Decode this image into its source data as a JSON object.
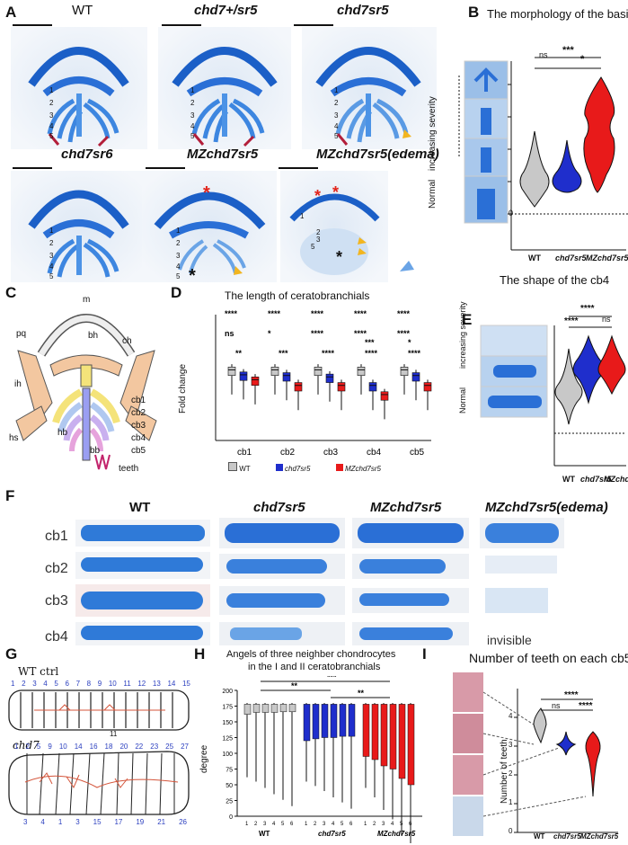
{
  "panels": {
    "A": "A",
    "B": "B",
    "C": "C",
    "D": "D",
    "E": "E",
    "F": "F",
    "G": "G",
    "H": "H",
    "I": "I"
  },
  "panelA": {
    "titles": [
      "WT",
      "chd7+/sr5",
      "chd7sr5",
      "chd7sr6",
      "MZchd7sr5",
      "MZchd7sr5(edema)"
    ],
    "arch_numbers": [
      "1",
      "2",
      "3",
      "4",
      "5"
    ],
    "symbol_asterisk": "*"
  },
  "panelB": {
    "title": "The morphology of the basihyal",
    "yaxis_top": "increasing severity",
    "yaxis_bottom": "Normal",
    "x_labels": [
      "WT",
      "chd7sr5",
      "MZchd7sr5"
    ],
    "sig": [
      "***",
      "ns",
      "*"
    ],
    "zero": "0"
  },
  "panelC": {
    "labels": [
      "m",
      "pq",
      "bh",
      "ch",
      "ih",
      "hs",
      "hb",
      "bb",
      "cb1",
      "cb2",
      "cb3",
      "cb4",
      "cb5",
      "teeth"
    ]
  },
  "panelD": {
    "title": "The length of ceratobranchials",
    "ylabel": "Fold change",
    "legend": [
      "WT",
      "chd7sr5",
      "MZchd7sr5"
    ],
    "sig_top": [
      "****",
      "****",
      "****",
      "****",
      "****"
    ],
    "sig_mid": [
      "ns",
      "*",
      "****",
      "****",
      "****"
    ],
    "sig_bot": [
      "**",
      "***",
      "****",
      "****",
      "****"
    ],
    "sig_mid2": [
      "",
      "",
      "",
      "***",
      "*"
    ]
  },
  "panelE": {
    "title": "The shape of the cb4",
    "yaxis_top": "increasing severity",
    "yaxis_bottom": "Normal",
    "x_labels": [
      "WT",
      "chd7sr5",
      "MZchd7sr5"
    ],
    "sig": [
      "****",
      "****",
      "ns"
    ]
  },
  "panelF": {
    "titles": [
      "WT",
      "chd7sr5",
      "MZchd7sr5",
      "MZchd7sr5(edema)"
    ],
    "rows": [
      "cb1",
      "cb2",
      "cb3",
      "cb4"
    ],
    "invisible": "invisible"
  },
  "panelG": {
    "wt_label": "WT ctrl",
    "mut_label": "chd7",
    "wt_top_numbers": [
      "1",
      "2",
      "3",
      "4",
      "5",
      "6",
      "7",
      "8",
      "9",
      "10",
      "11",
      "12",
      "13",
      "14",
      "15"
    ],
    "wt_bottom_number": "11",
    "mut_top_numbers": [
      "1",
      "2",
      "5",
      "9",
      "10",
      "14",
      "16",
      "18",
      "20",
      "22",
      "23",
      "25",
      "27"
    ],
    "mut_bottom_numbers": [
      "3",
      "4",
      "1",
      "3",
      "15",
      "17",
      "19",
      "21",
      "26"
    ]
  },
  "panelH": {
    "title_line1": "Angels of three neighber chondrocytes",
    "title_line2": "in the I and II ceratobranchials",
    "ylabel": "degree",
    "yticks": [
      "0",
      "25",
      "50",
      "75",
      "100",
      "125",
      "150",
      "175",
      "200"
    ],
    "groups": [
      "WT",
      "chd7sr5",
      "MZchd7sr5"
    ],
    "sig": [
      "***",
      "**",
      "**"
    ],
    "tick_numbers": [
      "1",
      "2",
      "3",
      "4",
      "5",
      "6"
    ]
  },
  "panelI": {
    "title": "Number of teeth on each cb5",
    "ylabel": "Number of teeth",
    "yticks": [
      "0",
      "1",
      "2",
      "3",
      "4"
    ],
    "x_labels": [
      "WT",
      "chd7sr5",
      "MZchd7sr5"
    ],
    "sig": [
      "****",
      "ns",
      "****"
    ]
  },
  "chart_data": [
    {
      "type": "bar",
      "title": "The length of ceratobranchials",
      "ylabel": "Fold change",
      "categories": [
        "cb1",
        "cb2",
        "cb3",
        "cb4",
        "cb5"
      ],
      "ylim": [
        0,
        1.4
      ],
      "series": [
        {
          "name": "WT",
          "values": [
            1.0,
            1.0,
            1.0,
            1.0,
            1.0
          ]
        },
        {
          "name": "chd7sr5",
          "values": [
            0.93,
            0.92,
            0.9,
            0.78,
            0.92
          ]
        },
        {
          "name": "MZchd7sr5",
          "values": [
            0.86,
            0.78,
            0.78,
            0.65,
            0.78
          ]
        }
      ]
    },
    {
      "type": "scatter",
      "title": "Angels of three neighber chondrocytes in the I and II ceratobranchials",
      "ylabel": "degree",
      "ylim": [
        0,
        200
      ],
      "series": [
        {
          "name": "WT",
          "values": [
            172,
            175,
            175,
            175,
            176,
            176
          ]
        },
        {
          "name": "chd7sr5",
          "values": [
            165,
            168,
            170,
            170,
            172,
            172
          ]
        },
        {
          "name": "MZchd7sr5",
          "values": [
            155,
            150,
            140,
            135,
            120,
            110
          ]
        }
      ]
    }
  ]
}
